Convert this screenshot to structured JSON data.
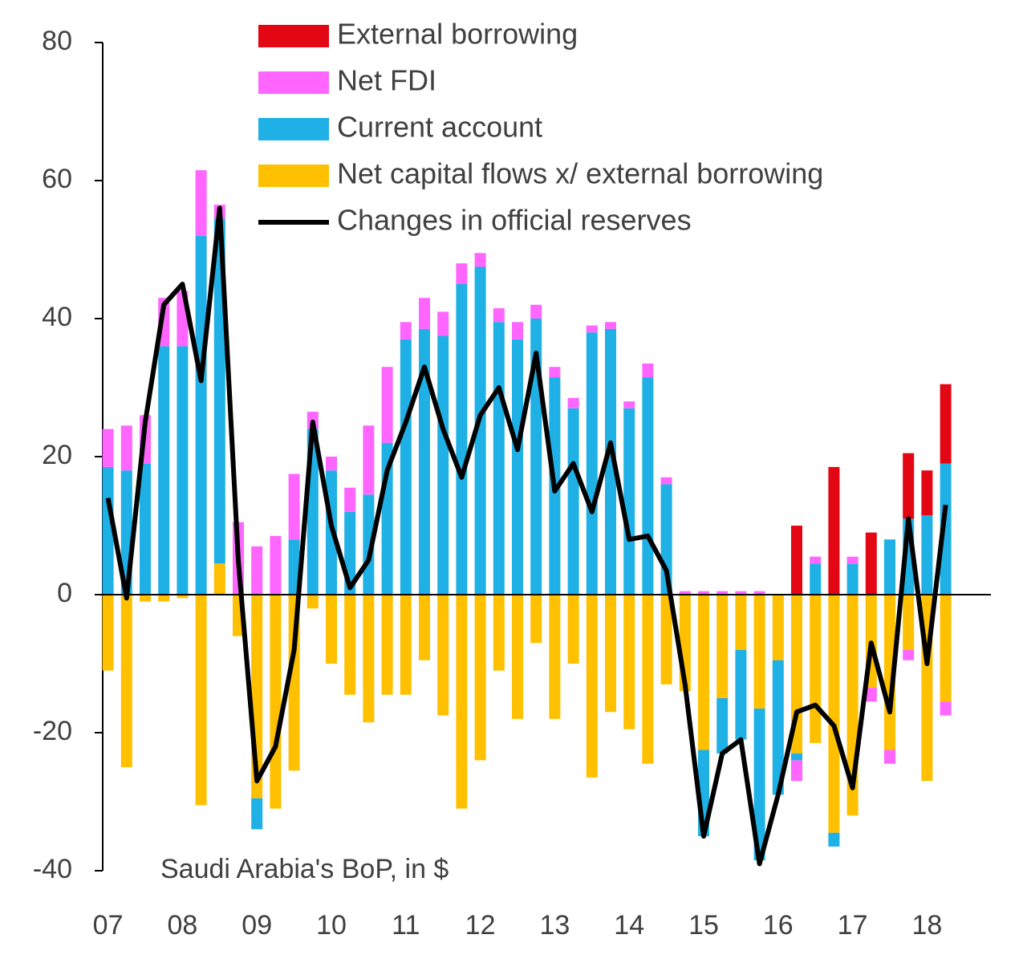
{
  "chart_data": {
    "type": "bar",
    "annotation": "Saudi Arabia's BoP, in $",
    "categories": [
      "07",
      null,
      null,
      null,
      "08",
      null,
      null,
      null,
      "09",
      null,
      null,
      null,
      "10",
      null,
      null,
      null,
      "11",
      null,
      null,
      null,
      "12",
      null,
      null,
      null,
      "13",
      null,
      null,
      null,
      "14",
      null,
      null,
      null,
      "15",
      null,
      null,
      null,
      "16",
      null,
      null,
      null,
      "17",
      null,
      null,
      null,
      "18",
      null
    ],
    "ylim": [
      -40,
      80
    ],
    "yticks": [
      -40,
      -20,
      0,
      20,
      40,
      60,
      80
    ],
    "series": [
      {
        "name": "External borrowing",
        "type": "bar",
        "color": "#e30613",
        "values": [
          0,
          0,
          0,
          0,
          0,
          0,
          0,
          0,
          0,
          0,
          0,
          0,
          0,
          0,
          0,
          0,
          0,
          0,
          0,
          0,
          0,
          0,
          0,
          0,
          0,
          0,
          0,
          0,
          0,
          0,
          0,
          0,
          0,
          0,
          0,
          0,
          0,
          10,
          0,
          18.5,
          0,
          9,
          0,
          9.5,
          6.5,
          11.5
        ]
      },
      {
        "name": "Net FDI",
        "type": "bar",
        "color": "#ff66ff",
        "values": [
          5.5,
          6.5,
          7,
          7,
          8,
          9.5,
          2,
          10.5,
          7,
          8.5,
          9.5,
          2.5,
          2,
          3.5,
          10,
          11,
          2.5,
          4.5,
          3.5,
          3,
          2,
          2,
          2.5,
          2,
          1.5,
          1.5,
          1,
          1,
          1,
          2,
          1,
          0.5,
          0.5,
          0.5,
          0.5,
          0.5,
          0,
          -3,
          1,
          0,
          1,
          -2,
          -2,
          -1.5,
          0,
          -2
        ]
      },
      {
        "name": "Current account",
        "type": "bar",
        "color": "#1fb1e6",
        "values": [
          18.5,
          18,
          19,
          36,
          36,
          52,
          50,
          0,
          -4.5,
          0,
          8,
          24,
          18,
          12,
          14.5,
          22,
          37,
          38.5,
          37.5,
          45,
          47.5,
          39.5,
          37,
          40,
          31.5,
          27,
          38,
          38.5,
          27,
          31.5,
          16,
          0,
          -12.5,
          -8,
          -13,
          -22,
          -19.5,
          -1,
          4.5,
          -2,
          4.5,
          0,
          8,
          11,
          11.5,
          19
        ]
      },
      {
        "name": "Net capital flows x/ external borrowing",
        "type": "bar",
        "color": "#ffc000",
        "values": [
          -11,
          -25,
          -1,
          -1,
          -0.5,
          -30.5,
          4.5,
          -6,
          -29.5,
          -31,
          -25.5,
          -2,
          -10,
          -14.5,
          -18.5,
          -14.5,
          -14.5,
          -9.5,
          -17.5,
          -31,
          -24,
          -11,
          -18,
          -7,
          -18,
          -10,
          -26.5,
          -17,
          -19.5,
          -24.5,
          -13,
          -14,
          -22.5,
          -15,
          -8,
          -16.5,
          -9.5,
          -23,
          -21.5,
          -34.5,
          -32,
          -13.5,
          -22.5,
          -8,
          -27,
          -15.5
        ]
      },
      {
        "name": "Changes in official reserves",
        "type": "line",
        "color": "#000000",
        "values": [
          14,
          -0.5,
          25,
          42,
          45,
          31,
          56,
          5,
          -27,
          -22,
          -8,
          25,
          10,
          1,
          5,
          18,
          25,
          33,
          24,
          17,
          26,
          30,
          21,
          35,
          15,
          19,
          12,
          22,
          8,
          8.5,
          3.5,
          -13,
          -35,
          -23,
          -21,
          -39,
          -29,
          -17,
          -16,
          -19,
          -28,
          -7,
          -17,
          11,
          -10,
          13
        ]
      }
    ]
  }
}
